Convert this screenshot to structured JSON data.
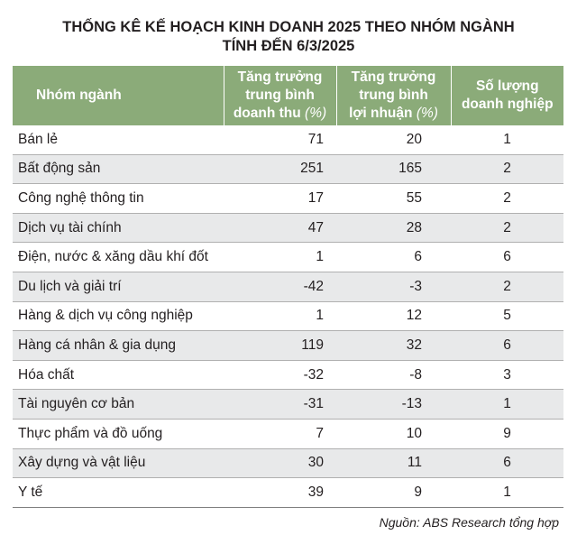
{
  "title": {
    "line1": "THỐNG KÊ KẾ HOẠCH KINH DOANH 2025 THEO NHÓM NGÀNH",
    "line2": "TÍNH ĐẾN 6/3/2025"
  },
  "table": {
    "headers": {
      "sector": "Nhóm ngành",
      "revenue_l1": "Tăng trưởng",
      "revenue_l2": "trung bình",
      "revenue_l3": "doanh thu",
      "revenue_unit": "(%)",
      "profit_l1": "Tăng trưởng",
      "profit_l2": "trung bình",
      "profit_l3": "lợi nhuận",
      "profit_unit": "(%)",
      "count_l1": "Số lượng",
      "count_l2": "doanh nghiệp"
    },
    "rows": [
      {
        "sector": "Bán lẻ",
        "revenue": "71",
        "profit": "20",
        "count": "1"
      },
      {
        "sector": "Bất động sản",
        "revenue": "251",
        "profit": "165",
        "count": "2"
      },
      {
        "sector": "Công nghệ thông tin",
        "revenue": "17",
        "profit": "55",
        "count": "2"
      },
      {
        "sector": "Dịch vụ tài chính",
        "revenue": "47",
        "profit": "28",
        "count": "2"
      },
      {
        "sector": "Điện, nước & xăng dầu khí đốt",
        "revenue": "1",
        "profit": "6",
        "count": "6"
      },
      {
        "sector": "Du lịch và giải trí",
        "revenue": "-42",
        "profit": "-3",
        "count": "2"
      },
      {
        "sector": "Hàng & dịch vụ công nghiệp",
        "revenue": "1",
        "profit": "12",
        "count": "5"
      },
      {
        "sector": "Hàng cá nhân & gia dụng",
        "revenue": "119",
        "profit": "32",
        "count": "6"
      },
      {
        "sector": "Hóa chất",
        "revenue": "-32",
        "profit": "-8",
        "count": "3"
      },
      {
        "sector": "Tài nguyên cơ bản",
        "revenue": "-31",
        "profit": "-13",
        "count": "1"
      },
      {
        "sector": "Thực phẩm và đồ uống",
        "revenue": "7",
        "profit": "10",
        "count": "9"
      },
      {
        "sector": "Xây dựng và vật liệu",
        "revenue": "30",
        "profit": "11",
        "count": "6"
      },
      {
        "sector": "Y tế",
        "revenue": "39",
        "profit": "9",
        "count": "1"
      }
    ]
  },
  "source": "Nguồn: ABS Research tổng hợp",
  "colors": {
    "header_bg": "#8bab79",
    "stripe": "#e8e9ea"
  }
}
